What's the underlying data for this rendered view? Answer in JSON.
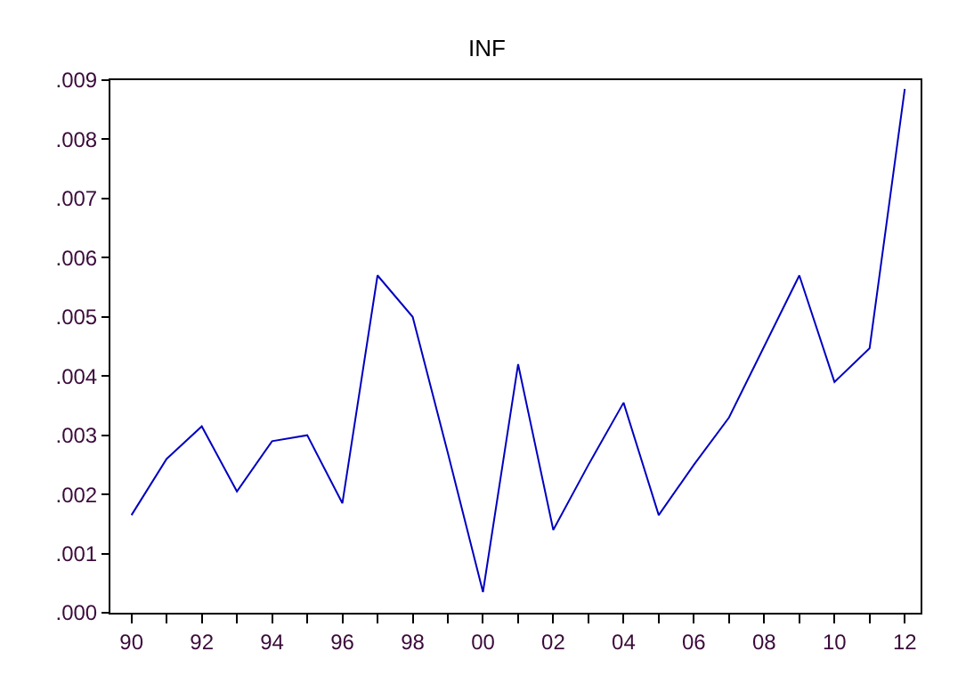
{
  "chart_data": {
    "type": "line",
    "title": "INF",
    "x": [
      1990,
      1991,
      1992,
      1993,
      1994,
      1995,
      1996,
      1997,
      1998,
      1999,
      2000,
      2001,
      2002,
      2003,
      2004,
      2005,
      2006,
      2007,
      2008,
      2009,
      2010,
      2011,
      2012
    ],
    "series": [
      {
        "color": "#0000c0",
        "values": [
          0.00165,
          0.0026,
          0.00315,
          0.00205,
          0.0029,
          0.003,
          0.00185,
          0.0057,
          0.005,
          0.0027,
          0.00035,
          0.0042,
          0.0014,
          0.0025,
          0.00355,
          0.00165,
          0.0025,
          0.0033,
          0.0045,
          0.0057,
          0.0039,
          0.00447,
          0.00885
        ]
      }
    ],
    "xlim": [
      1989.4,
      2012.45
    ],
    "xticks": [
      {
        "value": 1990,
        "label": "90"
      },
      {
        "value": 1991,
        "label": null
      },
      {
        "value": 1992,
        "label": "92"
      },
      {
        "value": 1993,
        "label": null
      },
      {
        "value": 1994,
        "label": "94"
      },
      {
        "value": 1995,
        "label": null
      },
      {
        "value": 1996,
        "label": "96"
      },
      {
        "value": 1997,
        "label": null
      },
      {
        "value": 1998,
        "label": "98"
      },
      {
        "value": 1999,
        "label": null
      },
      {
        "value": 2000,
        "label": "00"
      },
      {
        "value": 2001,
        "label": null
      },
      {
        "value": 2002,
        "label": "02"
      },
      {
        "value": 2003,
        "label": null
      },
      {
        "value": 2004,
        "label": "04"
      },
      {
        "value": 2005,
        "label": null
      },
      {
        "value": 2006,
        "label": "06"
      },
      {
        "value": 2007,
        "label": null
      },
      {
        "value": 2008,
        "label": "08"
      },
      {
        "value": 2009,
        "label": null
      },
      {
        "value": 2010,
        "label": "10"
      },
      {
        "value": 2011,
        "label": null
      },
      {
        "value": 2012,
        "label": "12"
      }
    ],
    "ylim": [
      0,
      0.009
    ],
    "yticks": [
      {
        "value": 0,
        "label": ".000"
      },
      {
        "value": 0.001,
        "label": ".001"
      },
      {
        "value": 0.002,
        "label": ".002"
      },
      {
        "value": 0.003,
        "label": ".003"
      },
      {
        "value": 0.004,
        "label": ".004"
      },
      {
        "value": 0.005,
        "label": ".005"
      },
      {
        "value": 0.006,
        "label": ".006"
      },
      {
        "value": 0.007,
        "label": ".007"
      },
      {
        "value": 0.008,
        "label": ".008"
      },
      {
        "value": 0.009,
        "label": ".009"
      }
    ],
    "marker": "none",
    "line_style": "solid"
  }
}
